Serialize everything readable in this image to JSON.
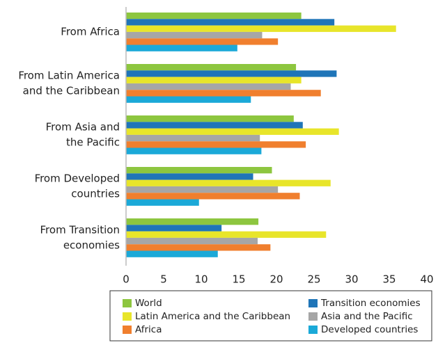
{
  "chart_data": {
    "type": "bar",
    "orientation": "horizontal",
    "categories": [
      [
        "From Africa"
      ],
      [
        "From Latin America",
        "and the Caribbean"
      ],
      [
        "From Asia and",
        "the Pacific"
      ],
      [
        "From Developed",
        "countries"
      ],
      [
        "From Transition",
        "economies"
      ]
    ],
    "series": [
      {
        "name": "World",
        "color": "#8dc63f",
        "values": [
          23.3,
          22.6,
          22.3,
          19.4,
          17.6
        ]
      },
      {
        "name": "Transition economies",
        "color": "#1f75b8",
        "values": [
          27.7,
          28.0,
          23.5,
          16.9,
          12.7
        ]
      },
      {
        "name": "Latin America and the Caribbean",
        "color": "#e8e52a",
        "values": [
          35.9,
          23.3,
          28.3,
          27.2,
          26.6
        ]
      },
      {
        "name": "Asia and the Pacific",
        "color": "#a6a6a6",
        "values": [
          18.1,
          21.9,
          17.8,
          20.2,
          17.5
        ]
      },
      {
        "name": "Africa",
        "color": "#f07f2e",
        "values": [
          20.2,
          25.9,
          23.9,
          23.1,
          19.2
        ]
      },
      {
        "name": "Developed countries",
        "color": "#1ba9d8",
        "values": [
          14.8,
          16.6,
          18.0,
          9.7,
          12.2
        ]
      }
    ],
    "xlim": [
      0,
      40
    ],
    "xticks": [
      0,
      5,
      10,
      15,
      20,
      25,
      30,
      35,
      40
    ],
    "grid": false
  }
}
